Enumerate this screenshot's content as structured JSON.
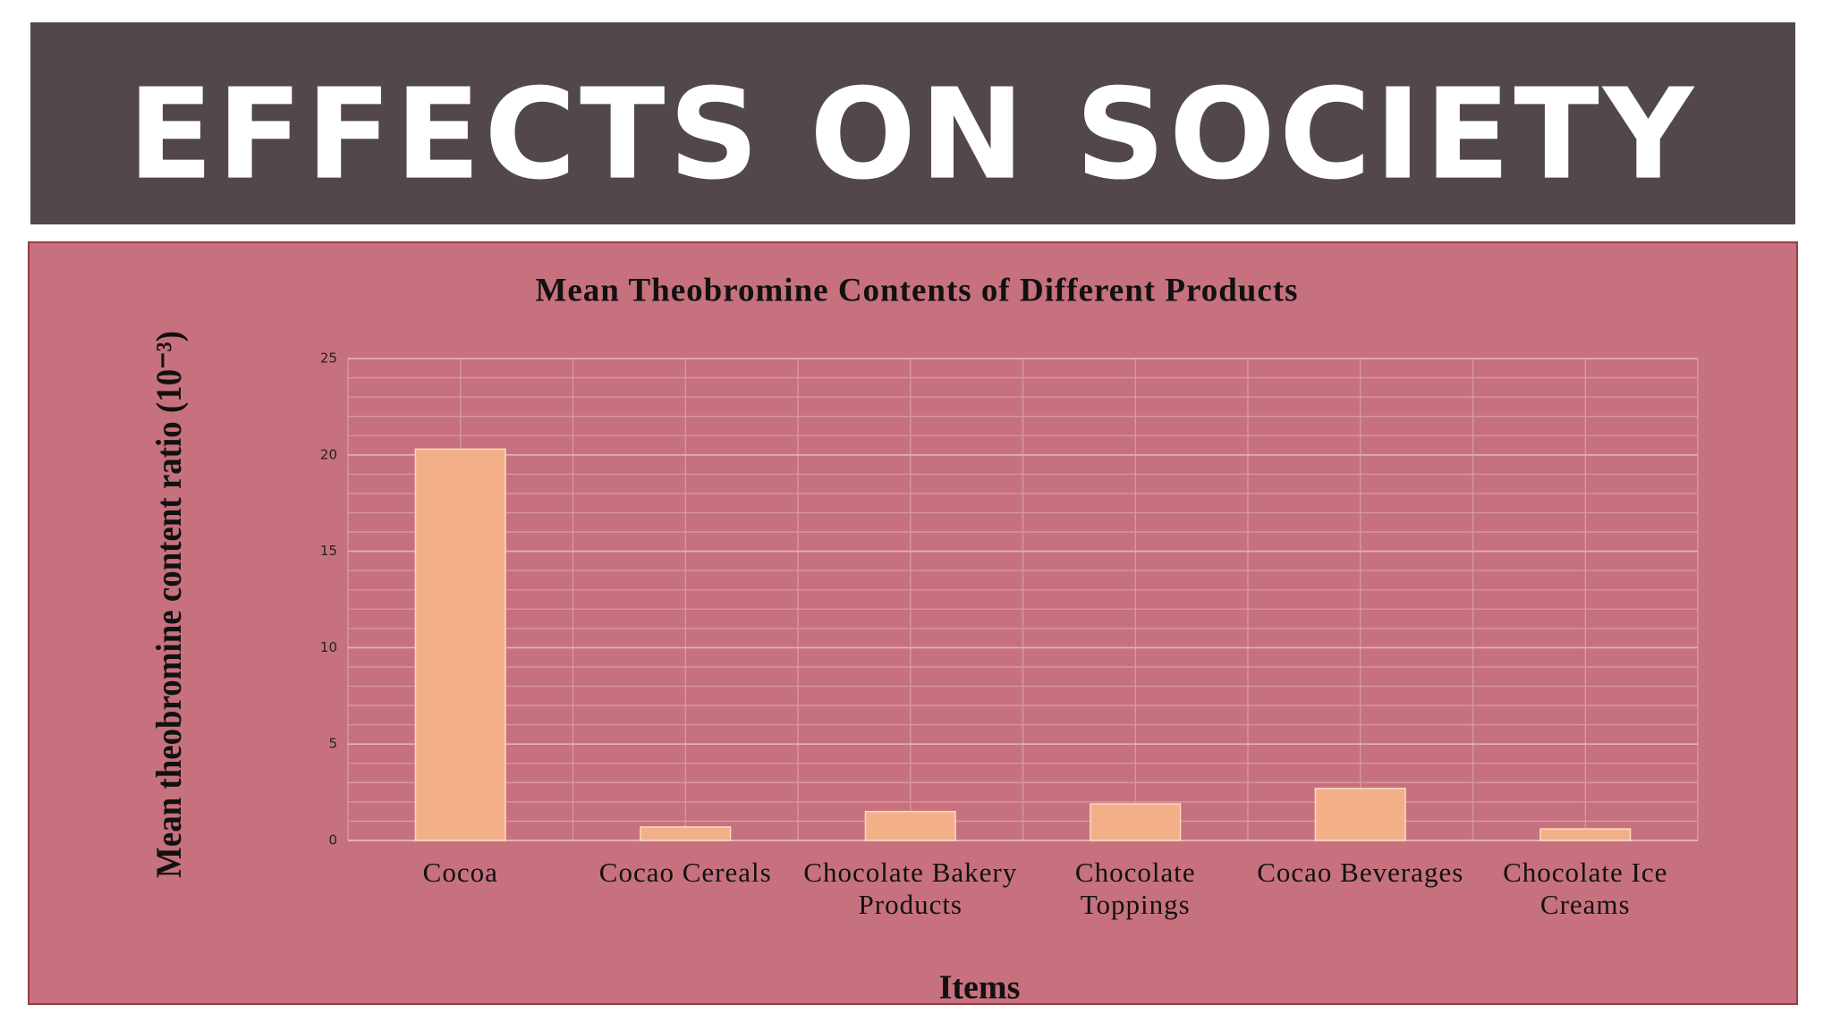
{
  "slide_title": "EFFECTS ON SOCIETY",
  "chart_data": {
    "type": "bar",
    "title": "Mean Theobromine Contents of Different Products",
    "x_label": "Items",
    "y_label": "Mean theobromine content ratio (10⁻³)",
    "categories": [
      "Cocoa",
      "Cocao Cereals",
      "Chocolate Bakery Products",
      "Chocolate Toppings",
      "Cocao Beverages",
      "Chocolate Ice Creams"
    ],
    "values": [
      20.3,
      0.7,
      1.5,
      1.9,
      2.7,
      0.6
    ],
    "color": "#f3b088",
    "ylim": [
      0,
      25
    ],
    "yticks": [
      0,
      5,
      10,
      15,
      20,
      25
    ],
    "grid": true,
    "minor_grid": true
  }
}
